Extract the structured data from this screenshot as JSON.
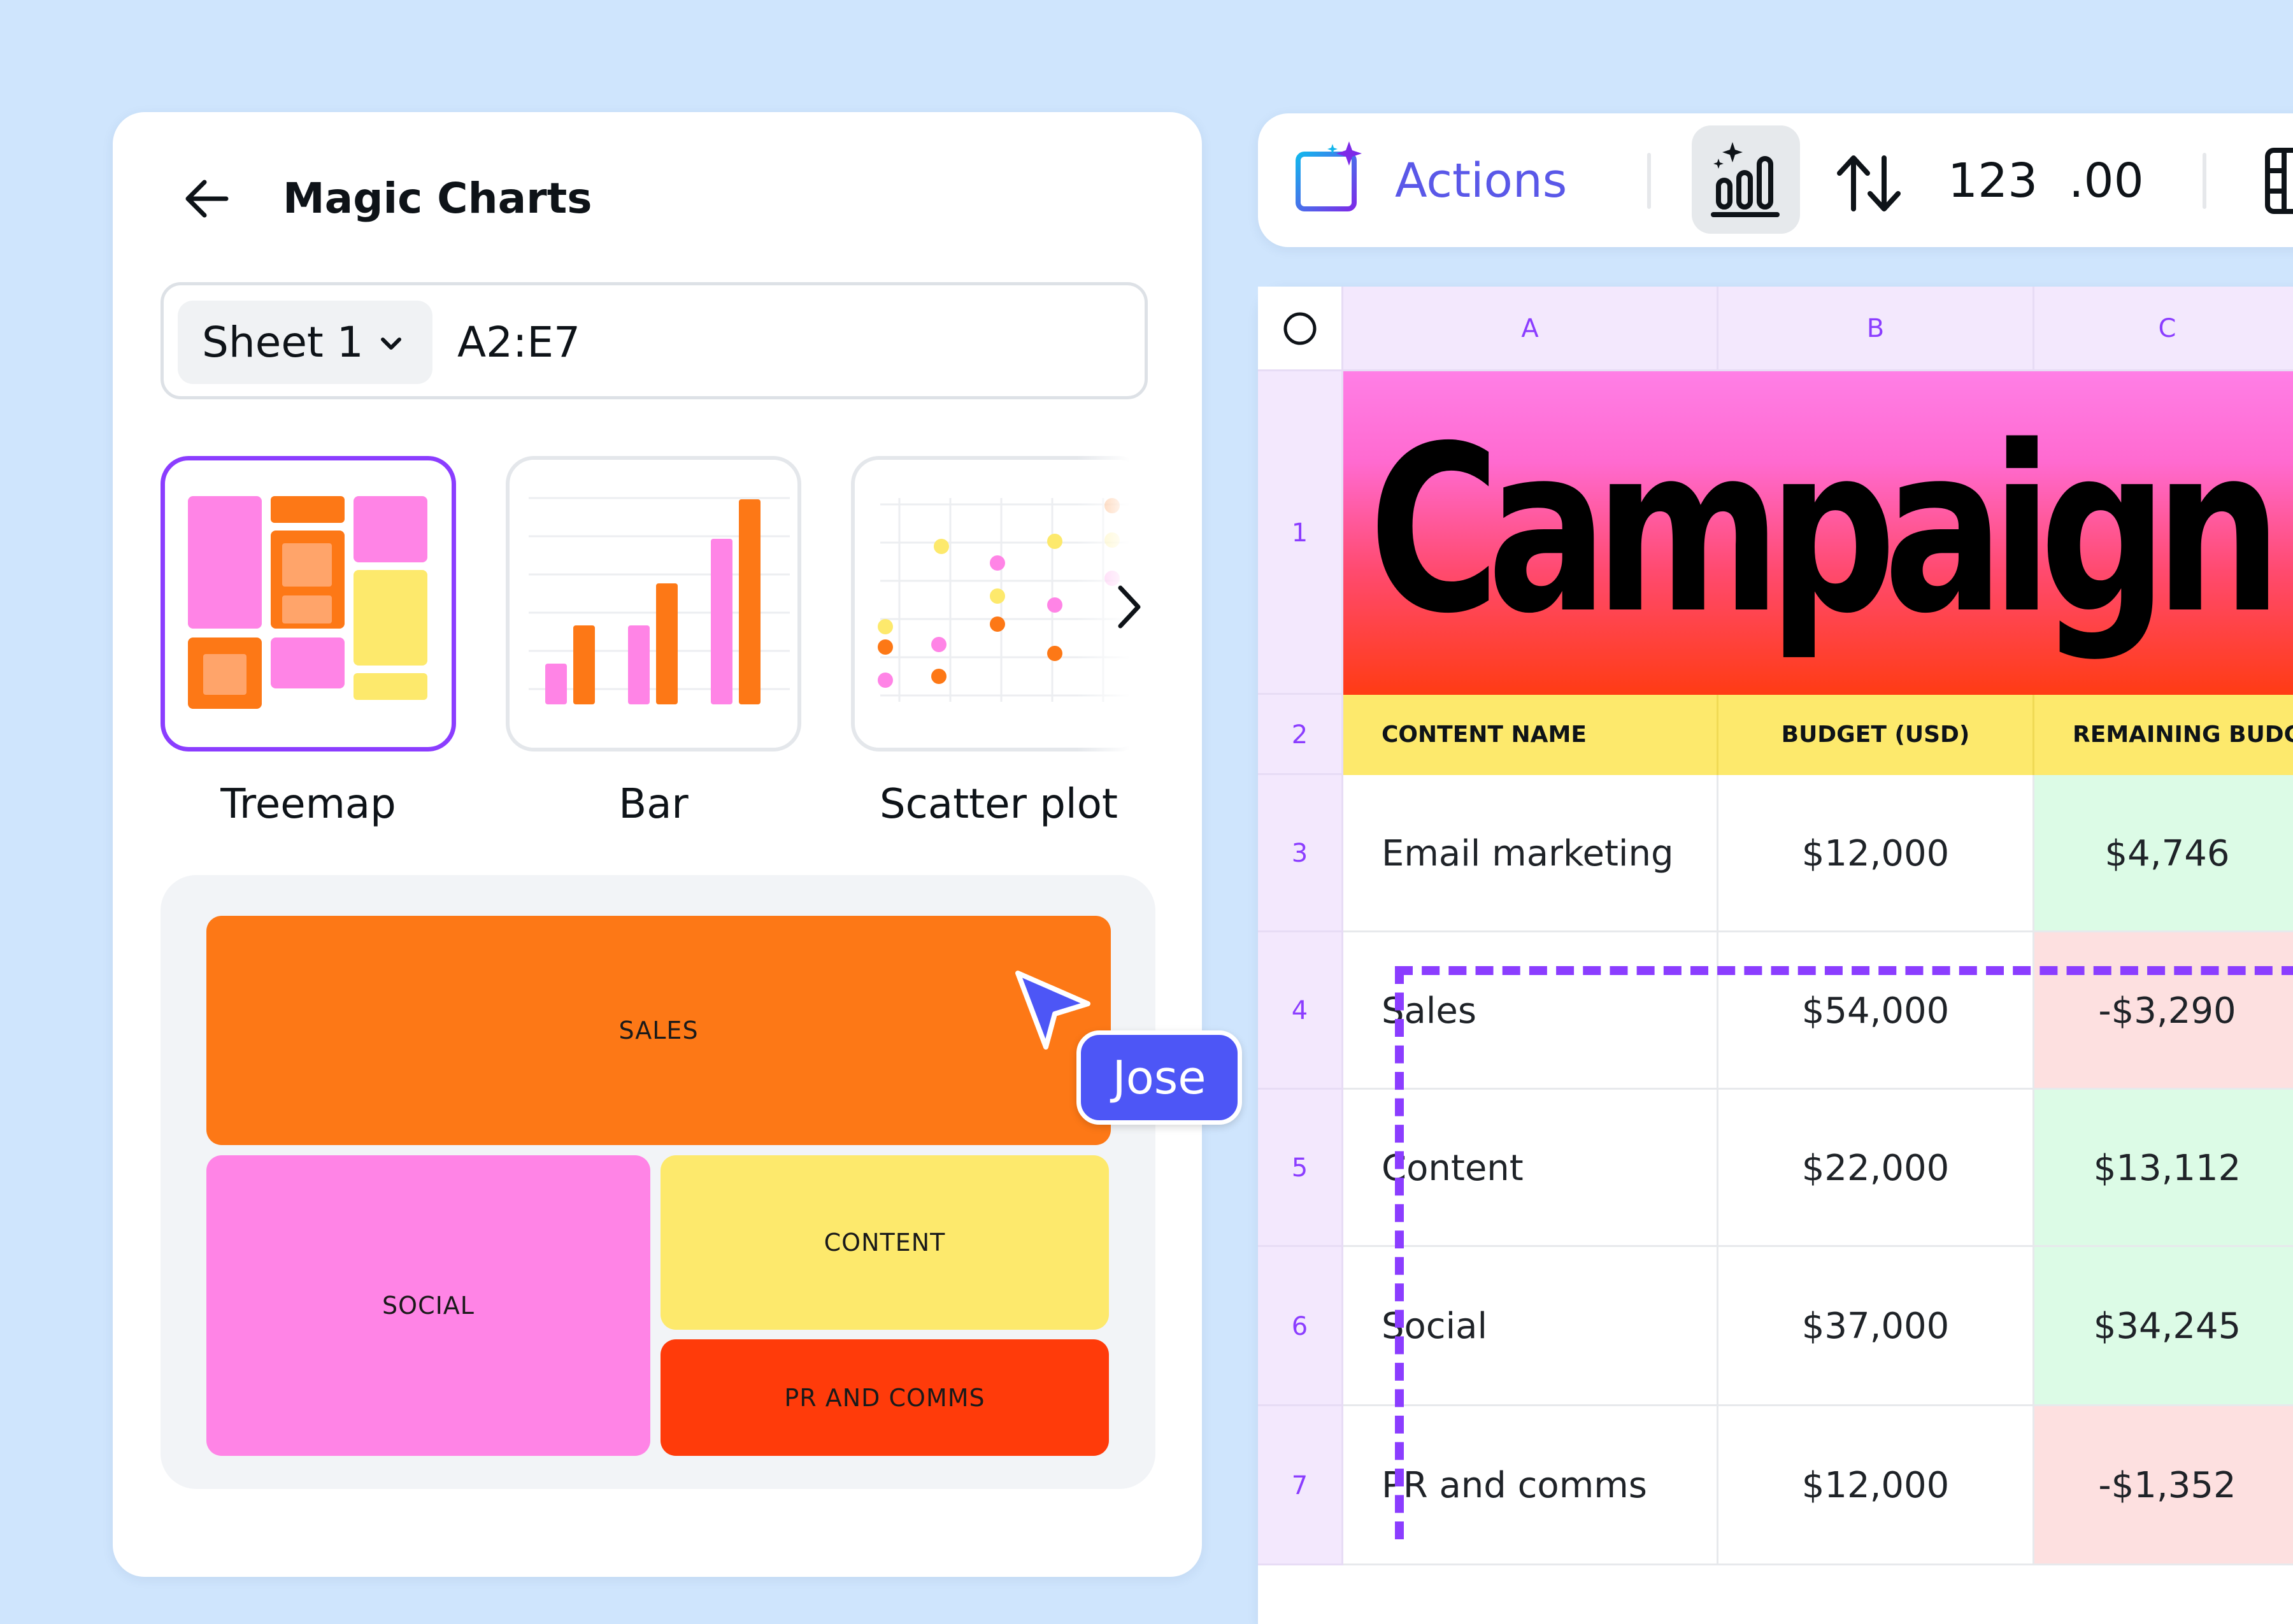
{
  "panel": {
    "title": "Magic Charts",
    "sheet_select": "Sheet 1",
    "range": "A2:E7",
    "chart_types": [
      {
        "label": "Treemap",
        "selected": true
      },
      {
        "label": "Bar",
        "selected": false
      },
      {
        "label": "Scatter plot",
        "selected": false
      }
    ],
    "preview_tiles": [
      "SALES",
      "SOCIAL",
      "CONTENT",
      "PR AND COMMS"
    ]
  },
  "collaborator": {
    "name": "Jose"
  },
  "toolbar": {
    "actions_label": "Actions",
    "number_format": "123",
    "decimal_format": ".00"
  },
  "sheet": {
    "columns": [
      "A",
      "B",
      "C"
    ],
    "row_numbers": [
      "1",
      "2",
      "3",
      "4",
      "5",
      "6",
      "7"
    ],
    "title": "Campaign tra",
    "headers": [
      "CONTENT NAME",
      "BUDGET (USD)",
      "REMAINING BUDGE"
    ],
    "rows": [
      {
        "name": "Email marketing",
        "budget": "$12,000",
        "remaining": "$4,746",
        "status": "positive"
      },
      {
        "name": "Sales",
        "budget": "$54,000",
        "remaining": "-$3,290",
        "status": "negative"
      },
      {
        "name": "Content",
        "budget": "$22,000",
        "remaining": "$13,112",
        "status": "positive"
      },
      {
        "name": "Social",
        "budget": "$37,000",
        "remaining": "$34,245",
        "status": "positive"
      },
      {
        "name": "PR and comms",
        "budget": "$12,000",
        "remaining": "-$1,352",
        "status": "negative"
      }
    ]
  },
  "colors": {
    "accent": "#8b3dff",
    "actions": "#5a58e8",
    "collaborator": "#4d56f6",
    "sales_tile": "#fd7816",
    "social_tile": "#ff84e6",
    "content_tile": "#fde96c",
    "pr_tile": "#ff3b0a",
    "positive_cell": "#dcfbe6",
    "negative_cell": "#fde0e0"
  }
}
